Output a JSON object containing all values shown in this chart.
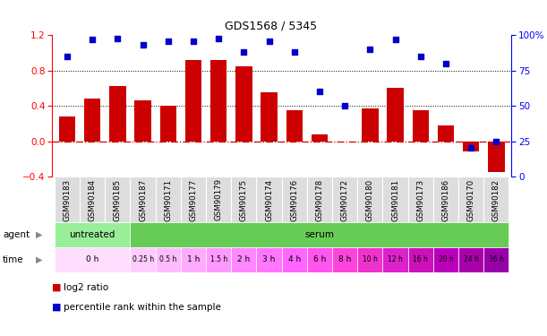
{
  "title": "GDS1568 / 5345",
  "samples": [
    "GSM90183",
    "GSM90184",
    "GSM90185",
    "GSM90187",
    "GSM90171",
    "GSM90177",
    "GSM90179",
    "GSM90175",
    "GSM90174",
    "GSM90176",
    "GSM90178",
    "GSM90172",
    "GSM90180",
    "GSM90181",
    "GSM90173",
    "GSM90186",
    "GSM90170",
    "GSM90182"
  ],
  "log2_ratio": [
    0.28,
    0.48,
    0.62,
    0.46,
    0.4,
    0.92,
    0.92,
    0.85,
    0.55,
    0.35,
    0.08,
    0.0,
    0.37,
    0.6,
    0.35,
    0.18,
    -0.12,
    -0.35
  ],
  "percentile": [
    85,
    97,
    98,
    93,
    96,
    96,
    98,
    88,
    96,
    88,
    60,
    50,
    90,
    97,
    85,
    80,
    20,
    25
  ],
  "bar_color": "#cc0000",
  "dot_color": "#0000cc",
  "ylim_left": [
    -0.4,
    1.2
  ],
  "ylim_right": [
    0,
    100
  ],
  "yticks_left": [
    -0.4,
    0.0,
    0.4,
    0.8,
    1.2
  ],
  "yticks_right": [
    0,
    25,
    50,
    75,
    100
  ],
  "hlines": [
    0.4,
    0.8
  ],
  "hline_zero_color": "#cc0000",
  "untreated_cols": [
    0,
    1,
    2
  ],
  "serum_cols": [
    3,
    4,
    5,
    6,
    7,
    8,
    9,
    10,
    11,
    12,
    13,
    14,
    15,
    16,
    17
  ],
  "untreated_color": "#99ee99",
  "serum_color": "#66cc55",
  "label_untreated": "untreated",
  "label_serum": "serum",
  "time_groups": [
    {
      "label": "0 h",
      "cols": [
        0,
        1,
        2
      ]
    },
    {
      "label": "0.25 h",
      "cols": [
        3
      ]
    },
    {
      "label": "0.5 h",
      "cols": [
        4
      ]
    },
    {
      "label": "1 h",
      "cols": [
        5
      ]
    },
    {
      "label": "1.5 h",
      "cols": [
        6
      ]
    },
    {
      "label": "2 h",
      "cols": [
        7
      ]
    },
    {
      "label": "3 h",
      "cols": [
        8
      ]
    },
    {
      "label": "4 h",
      "cols": [
        9
      ]
    },
    {
      "label": "6 h",
      "cols": [
        10
      ]
    },
    {
      "label": "8 h",
      "cols": [
        11
      ]
    },
    {
      "label": "10 h",
      "cols": [
        12
      ]
    },
    {
      "label": "12 h",
      "cols": [
        13
      ]
    },
    {
      "label": "16 h",
      "cols": [
        14
      ]
    },
    {
      "label": "20 h",
      "cols": [
        15
      ]
    },
    {
      "label": "24 h",
      "cols": [
        16
      ]
    },
    {
      "label": "36 h",
      "cols": [
        17
      ]
    }
  ],
  "time_colors": [
    "#ffddff",
    "#ffccff",
    "#ffbbff",
    "#ffaaff",
    "#ff99ff",
    "#ff88ff",
    "#ff77ff",
    "#ff66ff",
    "#ff55ee",
    "#ff44dd",
    "#ee33cc",
    "#dd22cc",
    "#cc11bb",
    "#bb00bb",
    "#aa00aa",
    "#9900aa"
  ],
  "sample_bg_color": "#dddddd",
  "legend_bar_label": "log2 ratio",
  "legend_dot_label": "percentile rank within the sample"
}
